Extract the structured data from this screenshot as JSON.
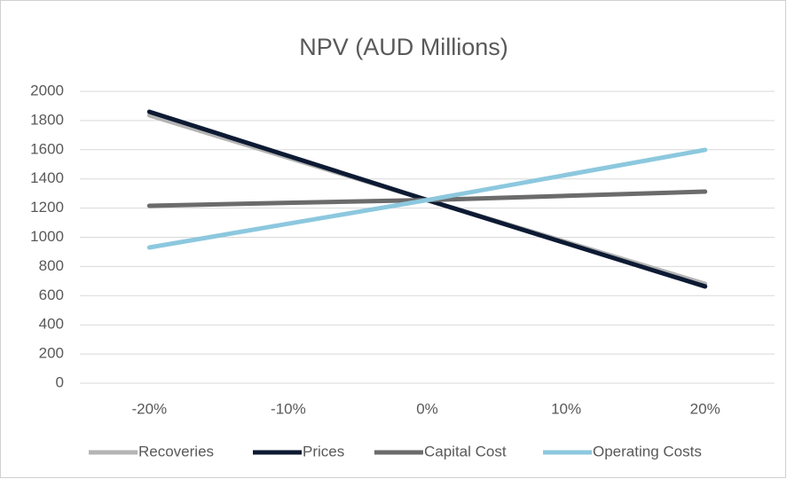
{
  "chart_data": {
    "type": "line",
    "title": "NPV (AUD Millions)",
    "categories": [
      "-20%",
      "-10%",
      "0%",
      "10%",
      "20%"
    ],
    "series": [
      {
        "name": "Recoveries",
        "color": "#b4b4b4",
        "values": [
          1836,
          1545,
          1255,
          968,
          681
        ]
      },
      {
        "name": "Prices",
        "color": "#0d1a33",
        "values": [
          1860,
          1558,
          1255,
          959,
          663
        ]
      },
      {
        "name": "Capital Cost",
        "color": "#6b6b6b",
        "values": [
          1216,
          1236,
          1255,
          1284,
          1313
        ]
      },
      {
        "name": "Operating Costs",
        "color": "#8cc8de",
        "values": [
          930,
          1093,
          1255,
          1427,
          1599
        ]
      }
    ],
    "ylim": [
      0,
      2000
    ],
    "yticks": [
      0,
      200,
      400,
      600,
      800,
      1000,
      1200,
      1400,
      1600,
      1800,
      2000
    ],
    "grid": true,
    "legend": "bottom"
  }
}
